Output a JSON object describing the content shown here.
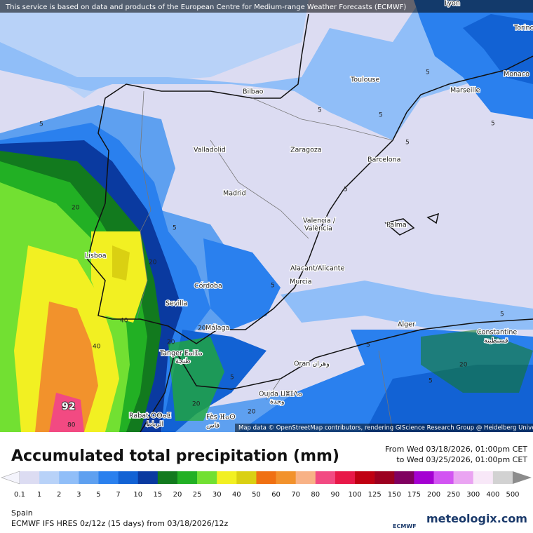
{
  "header": {
    "attribution": "This service is based on data and products of the European Centre for Medium-range Weather Forecasts (ECMWF)"
  },
  "map": {
    "attribution": "Map data © OpenStreetMap contributors, rendering GIScience Research Group @ Heidelberg University",
    "cities": [
      "Lyon",
      "Torino",
      "Monaco",
      "Toulouse",
      "Marseille",
      "Bilbao",
      "Barcelona",
      "Valladolid",
      "Zaragoza",
      "Madrid",
      "Palma",
      "Valencia /",
      "València",
      "Lisboa",
      "Alacant/Alicante",
      "Murcia",
      "Córdoba",
      "Sevilla",
      "Málaga",
      "Alger",
      "Constantine",
      "قسنطينة",
      "Tanger ⵟⴰⵏⵊⴰ",
      "طنجة",
      "Oran وهران",
      "Oujda ⵡⴻⵊⴷⴰ",
      "وجدة",
      "Rabat ⵔⴱⴰⵟ",
      "الرباط",
      "Fès ⴼⴰⵙ",
      "فاس"
    ],
    "contour_labels": [
      "5",
      "5",
      "5",
      "5",
      "5",
      "5",
      "5",
      "5",
      "5",
      "5",
      "5",
      "5",
      "5",
      "20",
      "20",
      "20",
      "20",
      "40",
      "40",
      "92",
      "80",
      "20",
      "20",
      "20"
    ]
  },
  "title": "Accumulated total precipitation (mm)",
  "period": {
    "from": "From Wed 03/18/2026, 01:00pm CET",
    "to": "to Wed 03/25/2026, 01:00pm CET"
  },
  "legend": {
    "labels": [
      0.1,
      1,
      2,
      3,
      5,
      7,
      10,
      15,
      20,
      25,
      30,
      40,
      50,
      60,
      70,
      80,
      90,
      100,
      125,
      150,
      175,
      200,
      250,
      300,
      400,
      500
    ],
    "colors": [
      "#dcdcf2",
      "#b8d2f8",
      "#90bef8",
      "#5ea0f0",
      "#2a80ee",
      "#1262d4",
      "#0a3aa0",
      "#127a1e",
      "#22b024",
      "#72e032",
      "#f2f022",
      "#dad012",
      "#f07012",
      "#f2922c",
      "#f8b286",
      "#f24a82",
      "#e81848",
      "#c00012",
      "#9c0020",
      "#800060",
      "#a400d2",
      "#d254f2",
      "#eaa4f2",
      "#f8e8f8",
      "#d2d2d2"
    ],
    "low_color": "#f4f4fc",
    "high_color": "#8c8c8c"
  },
  "footer": {
    "region": "Spain",
    "model": "ECMWF IFS HRES 0z/12z (15 days) from 03/18/2026/12z",
    "ecmwf_logo": "ECMWF",
    "brand": "meteologix.com"
  }
}
